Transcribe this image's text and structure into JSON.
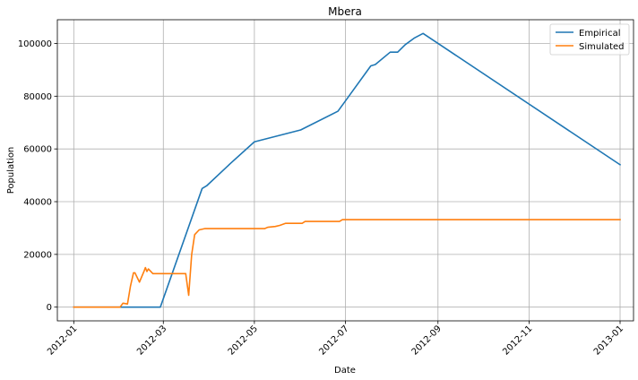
{
  "chart_data": {
    "type": "line",
    "title": "Mbera",
    "xlabel": "Date",
    "ylabel": "Population",
    "x_axis_kind": "date",
    "xlim": [
      "2011-12-21",
      "2013-01-10"
    ],
    "ylim": [
      -5200,
      109000
    ],
    "xticks": [
      "2012-01-01",
      "2012-03-01",
      "2012-05-01",
      "2012-07-01",
      "2012-09-01",
      "2012-11-01",
      "2013-01-01"
    ],
    "xtick_labels": [
      "2012-01",
      "2012-03",
      "2012-05",
      "2012-07",
      "2012-09",
      "2012-11",
      "2013-01"
    ],
    "yticks": [
      0,
      20000,
      40000,
      60000,
      80000,
      100000
    ],
    "ytick_labels": [
      "0",
      "20000",
      "40000",
      "60000",
      "80000",
      "100000"
    ],
    "grid": true,
    "legend_position": "top-right",
    "series": [
      {
        "name": "Empirical",
        "color": "#1f77b4",
        "points": [
          [
            "2012-01-01",
            0
          ],
          [
            "2012-02-28",
            0
          ],
          [
            "2012-03-27",
            45000
          ],
          [
            "2012-03-30",
            46000
          ],
          [
            "2012-04-15",
            54500
          ],
          [
            "2012-05-01",
            62700
          ],
          [
            "2012-06-01",
            67200
          ],
          [
            "2012-06-26",
            74300
          ],
          [
            "2012-07-18",
            91500
          ],
          [
            "2012-07-21",
            92000
          ],
          [
            "2012-07-31",
            96700
          ],
          [
            "2012-08-05",
            96700
          ],
          [
            "2012-08-10",
            99500
          ],
          [
            "2012-08-16",
            102000
          ],
          [
            "2012-08-22",
            103800
          ],
          [
            "2013-01-01",
            54000
          ]
        ]
      },
      {
        "name": "Simulated",
        "color": "#ff7f0e",
        "points": [
          [
            "2012-01-01",
            0
          ],
          [
            "2012-02-01",
            0
          ],
          [
            "2012-02-03",
            1500
          ],
          [
            "2012-02-06",
            1200
          ],
          [
            "2012-02-08",
            8000
          ],
          [
            "2012-02-10",
            13000
          ],
          [
            "2012-02-11",
            13000
          ],
          [
            "2012-02-14",
            9500
          ],
          [
            "2012-02-17",
            13500
          ],
          [
            "2012-02-18",
            15000
          ],
          [
            "2012-02-19",
            13500
          ],
          [
            "2012-02-20",
            14500
          ],
          [
            "2012-02-23",
            12700
          ],
          [
            "2012-03-16",
            12700
          ],
          [
            "2012-03-18",
            4500
          ],
          [
            "2012-03-20",
            20000
          ],
          [
            "2012-03-22",
            27500
          ],
          [
            "2012-03-25",
            29300
          ],
          [
            "2012-03-29",
            29800
          ],
          [
            "2012-05-08",
            29800
          ],
          [
            "2012-05-10",
            30300
          ],
          [
            "2012-05-15",
            30600
          ],
          [
            "2012-05-18",
            31000
          ],
          [
            "2012-05-22",
            31800
          ],
          [
            "2012-06-02",
            31800
          ],
          [
            "2012-06-04",
            32500
          ],
          [
            "2012-06-27",
            32500
          ],
          [
            "2012-06-29",
            33200
          ],
          [
            "2013-01-01",
            33200
          ]
        ]
      }
    ]
  }
}
